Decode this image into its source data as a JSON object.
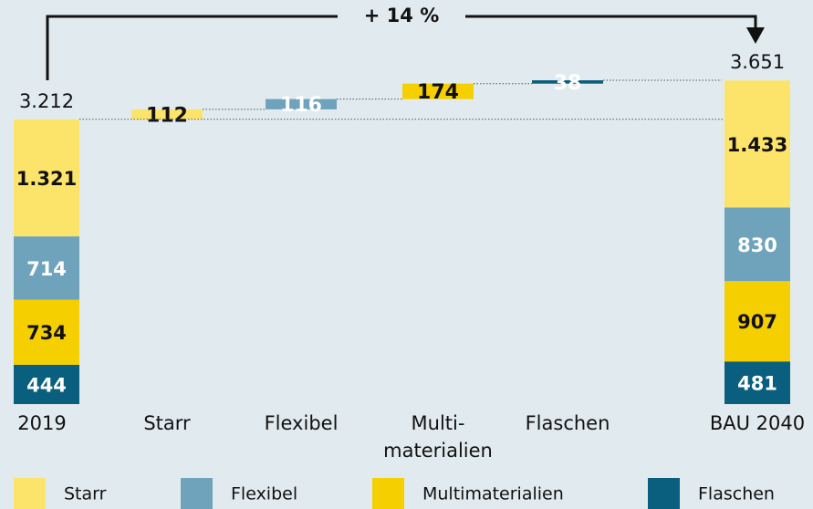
{
  "chart_data": {
    "type": "waterfall",
    "annotation": "+ 14 %",
    "categories": [
      "2019",
      "Starr",
      "Flexibel",
      "Multi-\nmaterialien",
      "Flaschen",
      "BAU 2040"
    ],
    "series": [
      {
        "name": "Flaschen",
        "color": "#0a5f7f",
        "values": [
          444,
          null,
          null,
          null,
          38,
          481
        ]
      },
      {
        "name": "Multimaterialien",
        "color": "#f5cf00",
        "values": [
          734,
          null,
          null,
          174,
          null,
          907
        ]
      },
      {
        "name": "Flexibel",
        "color": "#6fa3bb",
        "values": [
          714,
          null,
          116,
          null,
          null,
          830
        ]
      },
      {
        "name": "Starr",
        "color": "#fce46b",
        "values": [
          1321,
          112,
          null,
          null,
          null,
          1433
        ],
        "value_labels": [
          "1.321",
          "112",
          null,
          null,
          null,
          "1.433"
        ]
      }
    ],
    "totals": [
      3212,
      3651
    ],
    "total_labels": [
      "3.212",
      "3.651"
    ]
  }
}
